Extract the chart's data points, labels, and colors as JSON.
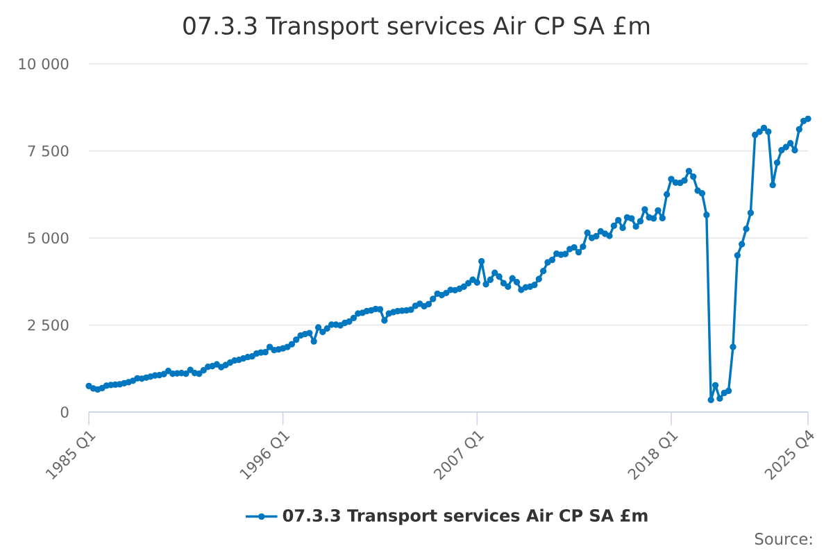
{
  "chart_data": {
    "type": "line",
    "title": "07.3.3 Transport services Air CP SA £m",
    "categories": [
      "1985 Q1",
      null,
      null,
      null,
      null,
      null,
      null,
      null,
      null,
      null,
      null,
      null,
      null,
      null,
      null,
      null,
      null,
      null,
      null,
      null,
      null,
      null,
      null,
      null,
      null,
      null,
      null,
      null,
      null,
      null,
      null,
      null,
      null,
      null,
      null,
      null,
      null,
      null,
      null,
      null,
      null,
      null,
      null,
      null,
      "1996 Q1",
      null,
      null,
      null,
      null,
      null,
      null,
      null,
      null,
      null,
      null,
      null,
      null,
      null,
      null,
      null,
      null,
      null,
      null,
      null,
      null,
      null,
      null,
      null,
      null,
      null,
      null,
      null,
      null,
      null,
      null,
      null,
      null,
      null,
      null,
      null,
      null,
      null,
      null,
      null,
      null,
      null,
      null,
      null,
      "2007 Q1",
      null,
      null,
      null,
      null,
      null,
      null,
      null,
      null,
      null,
      null,
      null,
      null,
      null,
      null,
      null,
      null,
      null,
      null,
      null,
      null,
      null,
      null,
      null,
      null,
      null,
      null,
      null,
      null,
      null,
      null,
      null,
      null,
      null,
      null,
      null,
      null,
      null,
      null,
      null,
      null,
      null,
      null,
      null,
      "2018 Q1",
      null,
      null,
      null,
      null,
      null,
      null,
      null,
      null,
      null,
      null,
      null,
      null,
      null,
      null,
      null,
      null,
      null,
      null,
      null,
      null,
      null,
      null,
      null,
      null,
      null,
      null,
      null,
      null,
      null,
      null,
      "2025 Q4"
    ],
    "series": [
      {
        "name": "07.3.3 Transport services Air CP SA £m",
        "color": "#0077be",
        "values": [
          750,
          680,
          650,
          690,
          760,
          780,
          790,
          800,
          830,
          860,
          900,
          970,
          960,
          990,
          1020,
          1050,
          1060,
          1090,
          1180,
          1100,
          1110,
          1120,
          1100,
          1210,
          1120,
          1100,
          1200,
          1300,
          1320,
          1370,
          1290,
          1350,
          1420,
          1480,
          1500,
          1540,
          1580,
          1600,
          1680,
          1710,
          1720,
          1870,
          1780,
          1800,
          1830,
          1870,
          1950,
          2080,
          2200,
          2240,
          2270,
          2030,
          2430,
          2300,
          2400,
          2510,
          2510,
          2490,
          2560,
          2600,
          2700,
          2830,
          2850,
          2900,
          2920,
          2960,
          2950,
          2630,
          2830,
          2870,
          2900,
          2910,
          2920,
          2940,
          3050,
          3110,
          3040,
          3100,
          3250,
          3400,
          3360,
          3420,
          3510,
          3500,
          3540,
          3600,
          3700,
          3800,
          3720,
          4330,
          3670,
          3800,
          4000,
          3890,
          3700,
          3600,
          3840,
          3730,
          3510,
          3580,
          3600,
          3650,
          3820,
          4050,
          4300,
          4370,
          4550,
          4520,
          4540,
          4680,
          4730,
          4590,
          4750,
          5150,
          5000,
          5050,
          5190,
          5120,
          5060,
          5350,
          5510,
          5290,
          5590,
          5560,
          5330,
          5480,
          5820,
          5590,
          5560,
          5790,
          5570,
          6250,
          6690,
          6590,
          6580,
          6650,
          6920,
          6760,
          6360,
          6280,
          5660,
          350,
          770,
          390,
          550,
          610,
          1870,
          4500,
          4820,
          5260,
          5720,
          7960,
          8050,
          8160,
          8050,
          6520,
          7160,
          7520,
          7610,
          7720,
          7520,
          8120,
          8360,
          8420
        ]
      }
    ],
    "ylim": [
      0,
      10000
    ],
    "yticks": [
      {
        "value": 0,
        "label": "0"
      },
      {
        "value": 2500,
        "label": "2 500"
      },
      {
        "value": 5000,
        "label": "5 000"
      },
      {
        "value": 7500,
        "label": "7 500"
      },
      {
        "value": 10000,
        "label": "10 000"
      }
    ],
    "grid": "y",
    "legend": "bottom",
    "marker": "circle",
    "line_style": "solid",
    "annotations": [
      "Source:"
    ]
  }
}
